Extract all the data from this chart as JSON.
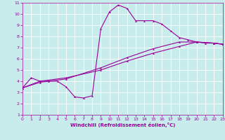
{
  "xlabel": "Windchill (Refroidissement éolien,°C)",
  "xlim": [
    0,
    23
  ],
  "ylim": [
    1,
    11
  ],
  "xticks": [
    0,
    1,
    2,
    3,
    4,
    5,
    6,
    7,
    8,
    9,
    10,
    11,
    12,
    13,
    14,
    15,
    16,
    17,
    18,
    19,
    20,
    21,
    22,
    23
  ],
  "yticks": [
    1,
    2,
    3,
    4,
    5,
    6,
    7,
    8,
    9,
    10,
    11
  ],
  "background_color": "#c8ecec",
  "line_color": "#990099",
  "grid_color": "#ffffff",
  "line1_x": [
    0,
    1,
    2,
    3,
    4,
    5,
    6,
    7,
    8,
    9,
    10,
    11,
    12,
    13,
    14,
    15,
    16,
    17,
    18,
    19,
    20,
    21,
    22,
    23
  ],
  "line1_y": [
    3.4,
    4.3,
    4.0,
    4.0,
    4.0,
    3.5,
    2.6,
    2.5,
    2.7,
    8.7,
    10.2,
    10.8,
    10.5,
    9.4,
    9.4,
    9.4,
    9.1,
    8.5,
    7.9,
    7.7,
    7.5,
    7.4,
    7.4,
    7.3
  ],
  "line2_x": [
    0,
    2,
    5,
    9,
    12,
    15,
    18,
    20,
    22,
    23
  ],
  "line2_y": [
    3.4,
    4.0,
    4.3,
    5.0,
    5.8,
    6.5,
    7.1,
    7.5,
    7.4,
    7.3
  ],
  "line3_x": [
    0,
    2,
    5,
    9,
    12,
    15,
    18,
    20,
    22,
    23
  ],
  "line3_y": [
    3.4,
    3.9,
    4.2,
    5.2,
    6.1,
    6.9,
    7.5,
    7.5,
    7.4,
    7.3
  ]
}
